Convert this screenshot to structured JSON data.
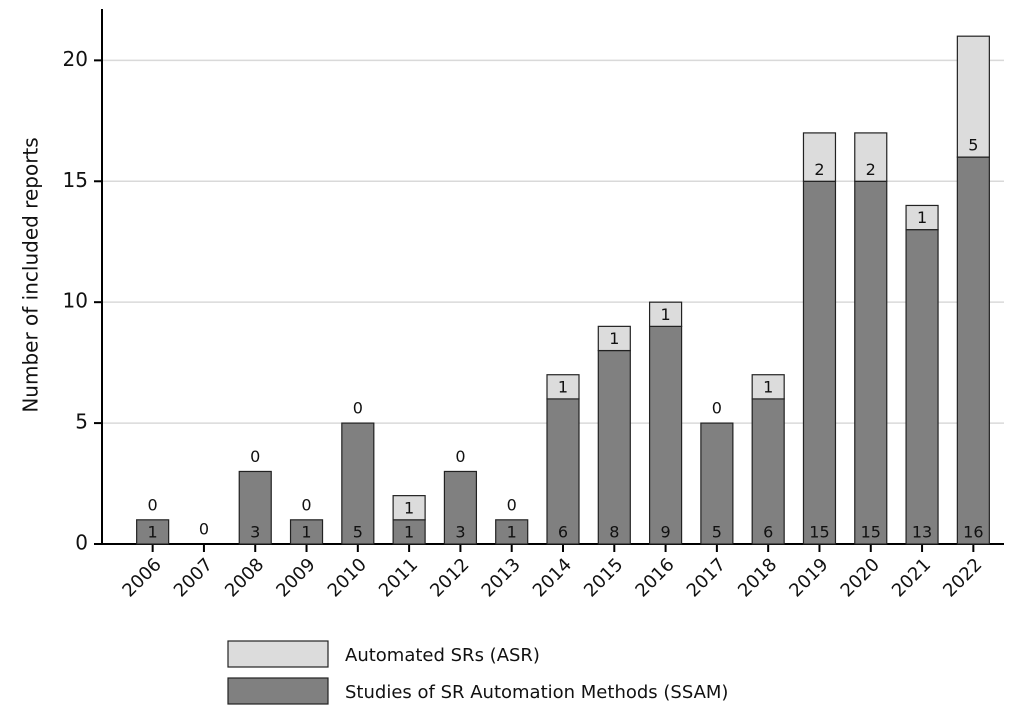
{
  "chart_data": {
    "type": "stacked_bar",
    "y_label": "Number of included reports",
    "categories": [
      "2006",
      "2007",
      "2008",
      "2009",
      "2010",
      "2011",
      "2012",
      "2013",
      "2014",
      "2015",
      "2016",
      "2017",
      "2018",
      "2019",
      "2020",
      "2021",
      "2022"
    ],
    "series": [
      {
        "name": "Studies of SR Automation Methods (SSAM)",
        "color": "#808080",
        "values": [
          1,
          0,
          3,
          1,
          5,
          1,
          3,
          1,
          6,
          8,
          9,
          5,
          6,
          15,
          15,
          13,
          16
        ]
      },
      {
        "name": "Automated SRs (ASR)",
        "color": "#dcdcdc",
        "values": [
          0,
          0,
          0,
          0,
          0,
          1,
          0,
          0,
          1,
          1,
          1,
          0,
          1,
          2,
          2,
          1,
          5
        ]
      }
    ],
    "ylim": [
      0,
      22
    ],
    "yticks": [
      0,
      5,
      10,
      15,
      20
    ],
    "grid": true
  }
}
